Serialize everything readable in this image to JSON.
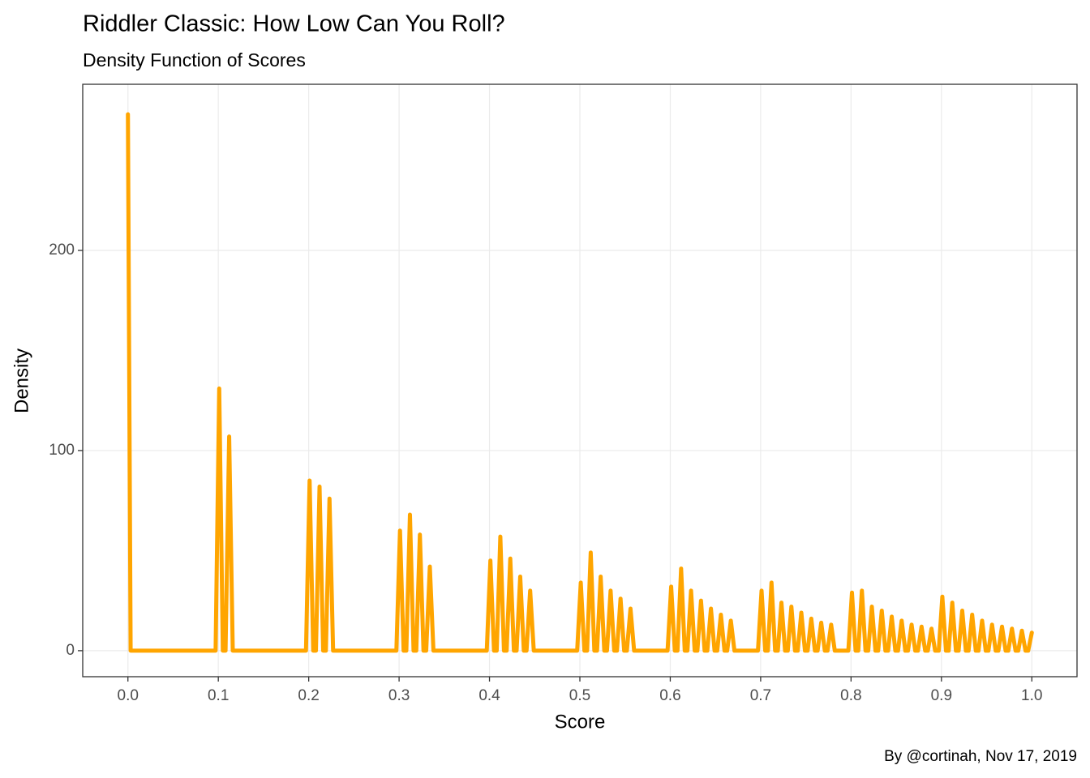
{
  "chart_data": {
    "type": "line",
    "title": "Riddler Classic: How Low Can You Roll?",
    "subtitle": "Density Function of Scores",
    "x_label": "Score",
    "y_label": "Density",
    "caption": "By @cortinah, Nov 17, 2019",
    "color": "#FFA500",
    "grid": true,
    "xlim": [
      -0.05,
      1.05
    ],
    "ylim": [
      -13,
      283
    ],
    "xticks": [
      {
        "value": 0,
        "label": "0.0"
      },
      0.1,
      0.2,
      0.3,
      0.4,
      0.5,
      0.6,
      0.7,
      0.8,
      0.9,
      {
        "value": 1,
        "label": "1.0"
      }
    ],
    "yticks": [
      0,
      100,
      200
    ],
    "x": [
      0,
      0.003,
      0.097,
      0.101,
      0.105,
      0.108,
      0.112,
      0.116,
      0.197,
      0.201,
      0.205,
      0.208,
      0.212,
      0.216,
      0.219,
      0.223,
      0.227,
      0.297,
      0.301,
      0.305,
      0.308,
      0.312,
      0.316,
      0.319,
      0.323,
      0.327,
      0.33,
      0.334,
      0.338,
      0.397,
      0.401,
      0.405,
      0.408,
      0.412,
      0.416,
      0.419,
      0.423,
      0.427,
      0.43,
      0.434,
      0.438,
      0.441,
      0.445,
      0.449,
      0.497,
      0.501,
      0.505,
      0.508,
      0.512,
      0.516,
      0.519,
      0.523,
      0.527,
      0.53,
      0.534,
      0.538,
      0.541,
      0.545,
      0.549,
      0.552,
      0.556,
      0.56,
      0.597,
      0.601,
      0.605,
      0.608,
      0.612,
      0.616,
      0.619,
      0.623,
      0.627,
      0.63,
      0.634,
      0.638,
      0.641,
      0.645,
      0.649,
      0.652,
      0.656,
      0.66,
      0.663,
      0.667,
      0.671,
      0.697,
      0.701,
      0.705,
      0.708,
      0.712,
      0.716,
      0.719,
      0.723,
      0.727,
      0.73,
      0.734,
      0.738,
      0.741,
      0.745,
      0.749,
      0.752,
      0.756,
      0.76,
      0.763,
      0.767,
      0.771,
      0.774,
      0.778,
      0.782,
      0.797,
      0.801,
      0.805,
      0.808,
      0.812,
      0.816,
      0.819,
      0.823,
      0.827,
      0.83,
      0.834,
      0.838,
      0.841,
      0.845,
      0.849,
      0.852,
      0.856,
      0.86,
      0.863,
      0.867,
      0.871,
      0.874,
      0.878,
      0.882,
      0.885,
      0.889,
      0.893,
      0.897,
      0.901,
      0.905,
      0.908,
      0.912,
      0.916,
      0.919,
      0.923,
      0.927,
      0.93,
      0.934,
      0.938,
      0.941,
      0.945,
      0.949,
      0.952,
      0.956,
      0.96,
      0.963,
      0.967,
      0.971,
      0.974,
      0.978,
      0.982,
      0.985,
      0.989,
      0.993,
      0.996,
      1.0
    ],
    "values": [
      268,
      0,
      0,
      131,
      0,
      0,
      107,
      0,
      0,
      85,
      0,
      0,
      82,
      0,
      0,
      76,
      0,
      0,
      60,
      0,
      0,
      68,
      0,
      0,
      58,
      0,
      0,
      42,
      0,
      0,
      45,
      0,
      0,
      57,
      0,
      0,
      46,
      0,
      0,
      37,
      0,
      0,
      30,
      0,
      0,
      34,
      0,
      0,
      49,
      0,
      0,
      37,
      0,
      0,
      30,
      0,
      0,
      26,
      0,
      0,
      21,
      0,
      0,
      32,
      0,
      0,
      41,
      0,
      0,
      30,
      0,
      0,
      25,
      0,
      0,
      21,
      0,
      0,
      18,
      0,
      0,
      15,
      0,
      0,
      30,
      0,
      0,
      34,
      0,
      0,
      24,
      0,
      0,
      22,
      0,
      0,
      19,
      0,
      0,
      16,
      0,
      0,
      14,
      0,
      0,
      13,
      0,
      0,
      29,
      0,
      0,
      30,
      0,
      0,
      22,
      0,
      0,
      20,
      0,
      0,
      17,
      0,
      0,
      15,
      0,
      0,
      13,
      0,
      0,
      12,
      0,
      0,
      11,
      0,
      0,
      27,
      0,
      0,
      24,
      0,
      0,
      20,
      0,
      0,
      18,
      0,
      0,
      15,
      0,
      0,
      13,
      0,
      0,
      12,
      0,
      0,
      11,
      0,
      0,
      10,
      0,
      0,
      9
    ]
  }
}
